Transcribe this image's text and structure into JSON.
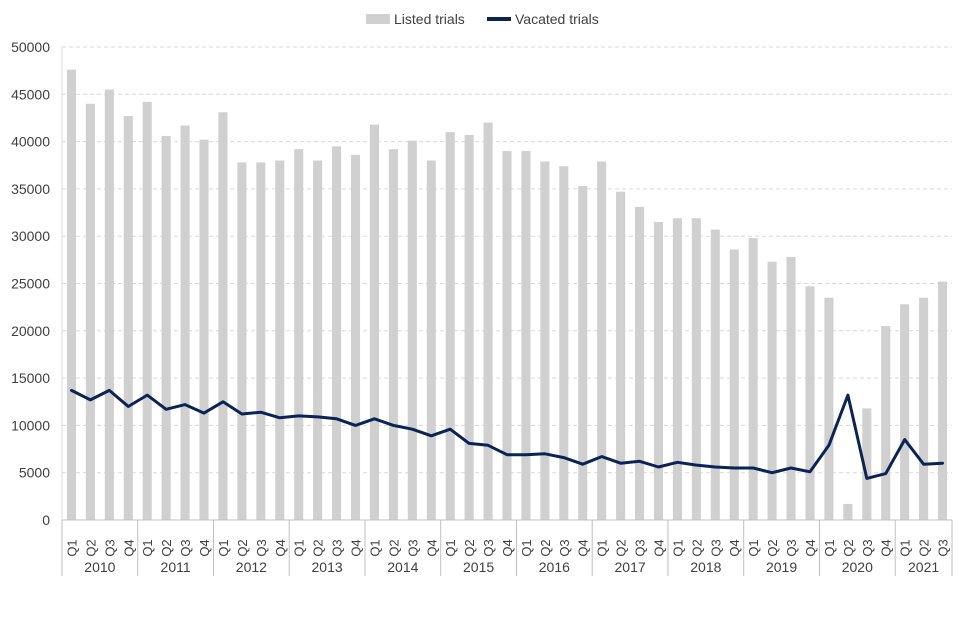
{
  "chart_data": {
    "type": "bar+line",
    "title": "",
    "xlabel": "",
    "ylabel": "",
    "ylim": [
      0,
      50000
    ],
    "yticks": [
      0,
      5000,
      10000,
      15000,
      20000,
      25000,
      30000,
      35000,
      40000,
      45000,
      50000
    ],
    "grid": true,
    "legend_position": "top-center",
    "years": [
      "2010",
      "2011",
      "2012",
      "2013",
      "2014",
      "2015",
      "2016",
      "2017",
      "2018",
      "2019",
      "2020",
      "2021"
    ],
    "categories": [
      "Q1",
      "Q2",
      "Q3",
      "Q4",
      "Q1",
      "Q2",
      "Q3",
      "Q4",
      "Q1",
      "Q2",
      "Q3",
      "Q4",
      "Q1",
      "Q2",
      "Q3",
      "Q4",
      "Q1",
      "Q2",
      "Q3",
      "Q4",
      "Q1",
      "Q2",
      "Q3",
      "Q4",
      "Q1",
      "Q2",
      "Q3",
      "Q4",
      "Q1",
      "Q2",
      "Q3",
      "Q4",
      "Q1",
      "Q2",
      "Q3",
      "Q4",
      "Q1",
      "Q2",
      "Q3",
      "Q4",
      "Q1",
      "Q2",
      "Q3",
      "Q4",
      "Q1",
      "Q2",
      "Q3"
    ],
    "series": [
      {
        "name": "Listed trials",
        "kind": "bar",
        "color": "#d0d0d0",
        "values": [
          47600,
          44000,
          45500,
          42700,
          44200,
          40600,
          41700,
          40200,
          43100,
          37800,
          37800,
          38000,
          39200,
          38000,
          39500,
          38600,
          41800,
          39200,
          40100,
          38000,
          41000,
          40700,
          42000,
          39000,
          39000,
          37900,
          37400,
          35300,
          37900,
          34700,
          33100,
          31500,
          31900,
          31900,
          30700,
          28600,
          29800,
          27300,
          27800,
          24700,
          23500,
          1700,
          11800,
          20500,
          22800,
          23500,
          25200
        ]
      },
      {
        "name": "Vacated trials",
        "kind": "line",
        "color": "#0c2356",
        "values": [
          13700,
          12700,
          13700,
          12000,
          13200,
          11700,
          12200,
          11300,
          12500,
          11200,
          11400,
          10800,
          11000,
          10900,
          10700,
          10000,
          10700,
          10000,
          9600,
          8900,
          9600,
          8100,
          7900,
          6900,
          6900,
          7000,
          6600,
          5900,
          6700,
          6000,
          6200,
          5600,
          6100,
          5800,
          5600,
          5500,
          5500,
          5000,
          5500,
          5100,
          7900,
          13200,
          4400,
          4900,
          8500,
          5900,
          6000
        ]
      }
    ]
  }
}
